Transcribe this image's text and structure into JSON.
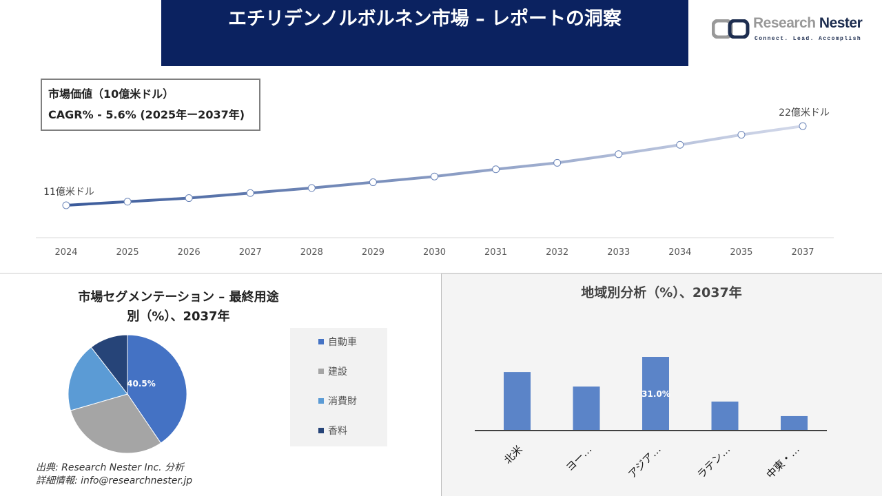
{
  "header": {
    "title": "エチリデンノルボルネン市場 – レポートの洞察"
  },
  "logo": {
    "name_part1": "Research",
    "name_part2": "Nester",
    "tagline": "Connect. Lead. Accomplish"
  },
  "info": {
    "line1": "市場価値（10億米ドル）",
    "line2": "CAGR% - 5.6% (2025年ー2037年)"
  },
  "chart_data": [
    {
      "type": "line",
      "categories": [
        "2024",
        "2025",
        "2026",
        "2027",
        "2028",
        "2029",
        "2030",
        "2031",
        "2032",
        "2033",
        "2034",
        "2035",
        "2037"
      ],
      "values": [
        11,
        11.5,
        12.0,
        12.7,
        13.4,
        14.2,
        15.0,
        16.0,
        16.9,
        18.1,
        19.4,
        20.8,
        22
      ],
      "annotations": [
        {
          "index": 0,
          "text": "11億米ドル"
        },
        {
          "index": 12,
          "text": "22億米ドル"
        }
      ],
      "colors": {
        "start": "#3a5a9a",
        "end": "#d3d9ea"
      },
      "grid": false
    },
    {
      "type": "pie",
      "title": "市場セグメンテーション – 最終用途別（%）、2037年",
      "categories": [
        "自動車",
        "建設",
        "消費財",
        "香料"
      ],
      "values": [
        40.5,
        30,
        19,
        10.5
      ],
      "colors": [
        "#4472c4",
        "#a5a5a5",
        "#5b9bd5",
        "#264478"
      ],
      "data_labels": [
        "40.5%",
        "",
        "",
        ""
      ],
      "legend": "right"
    },
    {
      "type": "bar",
      "title": "地域別分析（%）、2037年",
      "categories": [
        "北米",
        "ヨー…",
        "アジア…",
        "ラテン…",
        "中東・…"
      ],
      "values": [
        24.6,
        18.5,
        31.0,
        12.2,
        6.1
      ],
      "data_labels": [
        "",
        "",
        "31.0%",
        "",
        ""
      ],
      "color": "#5b84c8"
    }
  ],
  "footer": {
    "source": "出典: Research Nester Inc. 分析",
    "contact": "詳細情報: info@researchnester.jp"
  }
}
